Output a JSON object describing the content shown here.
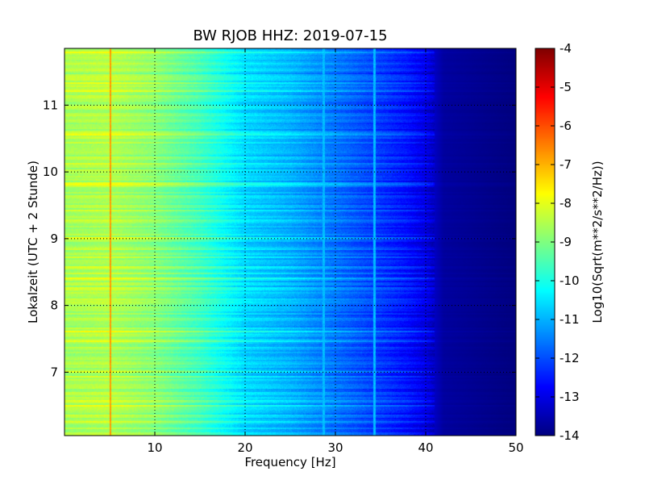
{
  "chart_data": {
    "type": "heatmap",
    "title": "BW RJOB HHZ: 2019-07-15",
    "xlabel": "Frequency [Hz]",
    "ylabel": "Lokalzeit (UTC + 2 Stunde)",
    "xlim": [
      0,
      50
    ],
    "ylim": [
      11.85,
      6.05
    ],
    "y_inverted": true,
    "grid": true,
    "x_ticks": [
      10,
      20,
      30,
      40,
      50
    ],
    "y_ticks": [
      7,
      8,
      9,
      10,
      11
    ],
    "colormap": "jet",
    "colorbar": {
      "label": "Log10(Sqrt(m**2/s**2/Hz))",
      "range": [
        -14,
        -4
      ],
      "ticks": [
        -4,
        -5,
        -6,
        -7,
        -8,
        -9,
        -10,
        -11,
        -12,
        -13,
        -14
      ],
      "position": "right"
    },
    "spectrum_profile": [
      {
        "f": 0.5,
        "level": -8.6
      },
      {
        "f": 5,
        "level": -8.5
      },
      {
        "f": 10,
        "level": -8.9
      },
      {
        "f": 15,
        "level": -9.6
      },
      {
        "f": 20,
        "level": -10.6
      },
      {
        "f": 25,
        "level": -11.0
      },
      {
        "f": 30,
        "level": -11.6
      },
      {
        "f": 35,
        "level": -12.2
      },
      {
        "f": 38,
        "level": -12.6
      },
      {
        "f": 40,
        "level": -13.0
      },
      {
        "f": 42,
        "level": -13.7
      },
      {
        "f": 50,
        "level": -14.0
      }
    ],
    "features": [
      {
        "type": "tone",
        "f": 5.1,
        "level": -6.8
      },
      {
        "type": "tone",
        "f": 28.7,
        "level": -10.9
      },
      {
        "type": "tone",
        "f": 34.3,
        "level": -10.9
      }
    ]
  }
}
